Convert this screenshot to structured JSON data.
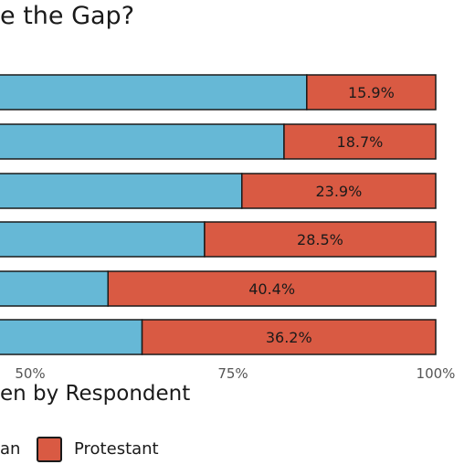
{
  "chart_data": {
    "type": "bar",
    "stacked": true,
    "orientation": "horizontal",
    "title": "e the Gap?",
    "xlabel": "en by Respondent",
    "xlim": [
      0,
      100
    ],
    "x_ticks": [
      "50%",
      "75%",
      "100%"
    ],
    "series": [
      {
        "name": "an",
        "color": "#66b8d6",
        "values": [
          84.1,
          81.3,
          76.1,
          71.5,
          59.6,
          63.8
        ]
      },
      {
        "name": "Protestant",
        "color": "#d95a43",
        "values": [
          15.9,
          18.7,
          23.9,
          28.5,
          40.4,
          36.2
        ]
      }
    ],
    "data_labels": [
      "15.9%",
      "18.7%",
      "23.9%",
      "28.5%",
      "40.4%",
      "36.2%"
    ]
  }
}
